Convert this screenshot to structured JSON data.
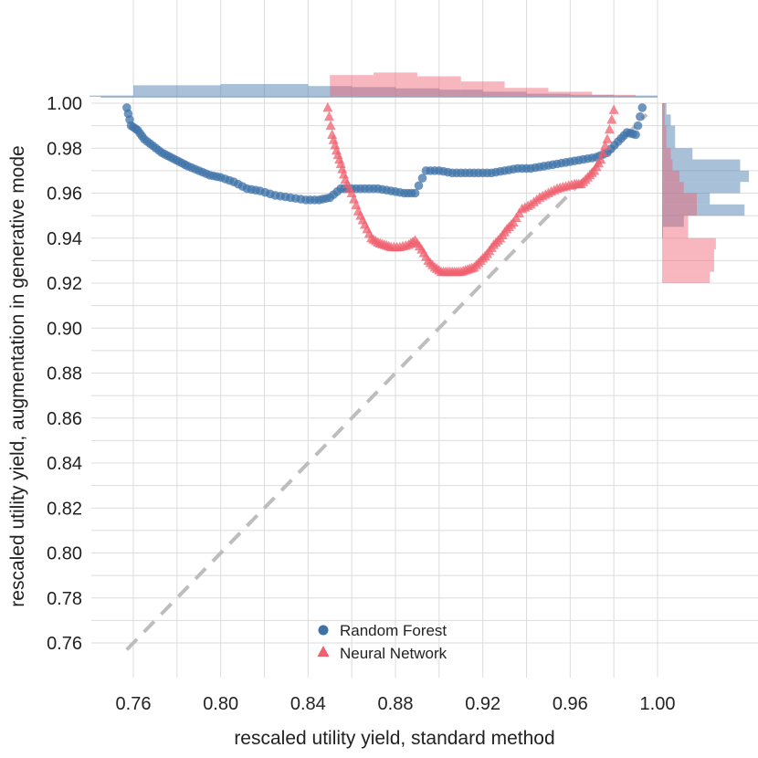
{
  "chart_data": {
    "type": "scatter",
    "title": "",
    "xlabel": "rescaled utility yield, standard method",
    "ylabel": "rescaled utility yield, augmentation in generative mode",
    "xlim": [
      0.745,
      1.01
    ],
    "ylim": [
      0.748,
      1.005
    ],
    "x_ticks": [
      "0.76",
      "0.80",
      "0.84",
      "0.88",
      "0.92",
      "0.96",
      "1.00"
    ],
    "y_ticks": [
      "0.76",
      "0.78",
      "0.80",
      "0.82",
      "0.84",
      "0.86",
      "0.88",
      "0.90",
      "0.92",
      "0.94",
      "0.96",
      "0.98",
      "1.00"
    ],
    "reference_line": {
      "style": "dashed",
      "color": "#bdbdbd",
      "x": [
        0.757,
        0.995
      ],
      "y": [
        0.757,
        0.995
      ]
    },
    "grid": true,
    "legend_position": "bottom-center",
    "series": [
      {
        "name": "Random Forest",
        "marker": "circle",
        "color": "#3f73a8",
        "x": [
          0.757,
          0.759,
          0.762,
          0.765,
          0.769,
          0.773,
          0.777,
          0.781,
          0.785,
          0.79,
          0.795,
          0.8,
          0.806,
          0.812,
          0.818,
          0.825,
          0.832,
          0.839,
          0.845,
          0.85,
          0.855,
          0.86,
          0.866,
          0.872,
          0.878,
          0.884,
          0.889,
          0.894,
          0.9,
          0.906,
          0.912,
          0.918,
          0.924,
          0.93,
          0.936,
          0.942,
          0.948,
          0.954,
          0.96,
          0.966,
          0.972,
          0.977,
          0.982,
          0.986,
          0.99,
          0.993
        ],
        "y": [
          0.998,
          0.99,
          0.988,
          0.984,
          0.981,
          0.978,
          0.976,
          0.974,
          0.972,
          0.97,
          0.968,
          0.967,
          0.965,
          0.962,
          0.961,
          0.959,
          0.958,
          0.957,
          0.957,
          0.958,
          0.962,
          0.962,
          0.962,
          0.962,
          0.961,
          0.96,
          0.96,
          0.97,
          0.97,
          0.969,
          0.969,
          0.969,
          0.969,
          0.97,
          0.971,
          0.971,
          0.972,
          0.973,
          0.974,
          0.975,
          0.976,
          0.978,
          0.983,
          0.987,
          0.986,
          0.998
        ]
      },
      {
        "name": "Neural Network",
        "marker": "triangle",
        "color": "#f0606f",
        "x": [
          0.849,
          0.851,
          0.853,
          0.855,
          0.857,
          0.86,
          0.863,
          0.866,
          0.869,
          0.872,
          0.875,
          0.878,
          0.882,
          0.886,
          0.889,
          0.892,
          0.895,
          0.898,
          0.901,
          0.904,
          0.907,
          0.91,
          0.913,
          0.916,
          0.919,
          0.922,
          0.925,
          0.928,
          0.931,
          0.934,
          0.938,
          0.942,
          0.946,
          0.95,
          0.954,
          0.958,
          0.962,
          0.965,
          0.968,
          0.971,
          0.974,
          0.977,
          0.98
        ],
        "y": [
          0.998,
          0.986,
          0.979,
          0.973,
          0.966,
          0.96,
          0.952,
          0.946,
          0.94,
          0.938,
          0.937,
          0.936,
          0.936,
          0.937,
          0.939,
          0.935,
          0.93,
          0.927,
          0.925,
          0.925,
          0.925,
          0.925,
          0.926,
          0.927,
          0.93,
          0.933,
          0.937,
          0.94,
          0.944,
          0.947,
          0.953,
          0.955,
          0.958,
          0.96,
          0.962,
          0.963,
          0.964,
          0.964,
          0.967,
          0.97,
          0.975,
          0.984,
          0.997
        ]
      }
    ],
    "marginal_top": {
      "Random Forest": {
        "bins_x": [
          0.74,
          0.76,
          0.78,
          0.8,
          0.82,
          0.84,
          0.86,
          0.88,
          0.9,
          0.92,
          0.94,
          0.96,
          0.98,
          1.0
        ],
        "values": [
          0.05,
          0.45,
          0.45,
          0.5,
          0.5,
          0.42,
          0.38,
          0.33,
          0.28,
          0.2,
          0.12,
          0.08,
          0.05
        ]
      },
      "Neural Network": {
        "bins_x": [
          0.85,
          0.87,
          0.89,
          0.91,
          0.93,
          0.95,
          0.97,
          0.99
        ],
        "values": [
          0.85,
          0.95,
          0.8,
          0.6,
          0.35,
          0.2,
          0.08
        ]
      }
    },
    "marginal_right": {
      "Random Forest": {
        "bins_y": [
          0.94,
          0.945,
          0.95,
          0.955,
          0.96,
          0.965,
          0.97,
          0.975,
          0.98,
          0.985,
          0.99,
          0.995,
          1.0
        ],
        "values": [
          0.0,
          0.25,
          0.95,
          0.55,
          0.9,
          1.0,
          0.9,
          0.35,
          0.15,
          0.15,
          0.1,
          0.05
        ]
      },
      "Neural Network": {
        "bins_y": [
          0.92,
          0.925,
          0.93,
          0.935,
          0.94,
          0.945,
          0.95,
          0.955,
          0.96,
          0.965,
          0.97,
          0.975,
          0.98,
          0.985,
          0.99,
          0.995,
          1.0
        ],
        "values": [
          0.55,
          0.6,
          0.6,
          0.62,
          0.3,
          0.3,
          0.4,
          0.4,
          0.25,
          0.2,
          0.12,
          0.1,
          0.05,
          0.05,
          0.03,
          0.03
        ]
      }
    }
  }
}
